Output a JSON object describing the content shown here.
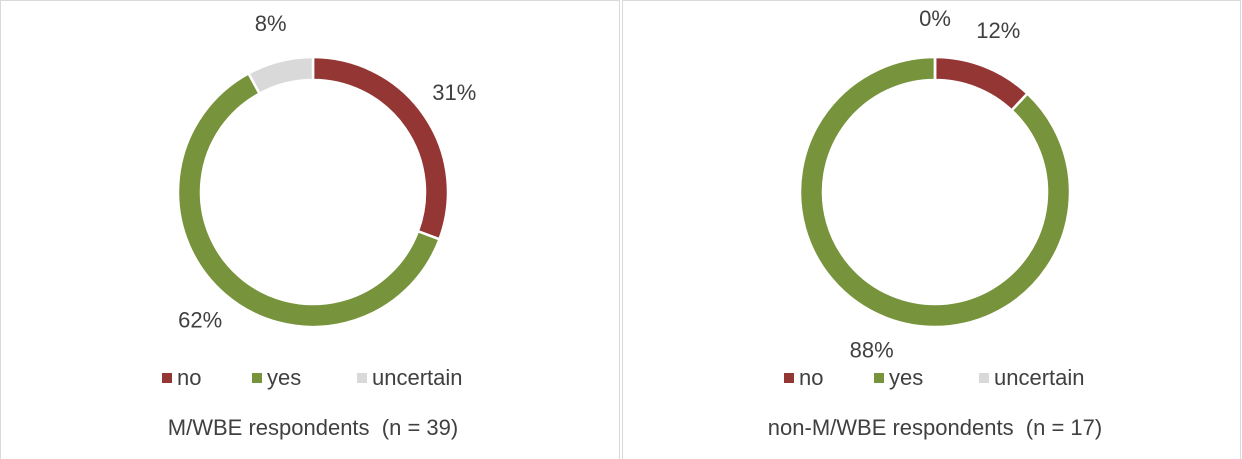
{
  "chart_data": [
    {
      "type": "donut",
      "title": "M/WBE respondents  (n = 39)",
      "categories": [
        "no",
        "yes",
        "uncertain"
      ],
      "values": [
        31,
        62,
        8
      ],
      "value_labels": [
        "31%",
        "62%",
        "8%"
      ],
      "colors": [
        "#943634",
        "#77933c",
        "#d9d9d9"
      ],
      "legend": "bottom"
    },
    {
      "type": "donut",
      "title": "non-M/WBE respondents  (n = 17)",
      "categories": [
        "no",
        "yes",
        "uncertain"
      ],
      "values": [
        12,
        88,
        0
      ],
      "value_labels": [
        "12%",
        "88%",
        "0%"
      ],
      "colors": [
        "#943634",
        "#77933c",
        "#d9d9d9"
      ],
      "legend": "bottom"
    }
  ]
}
